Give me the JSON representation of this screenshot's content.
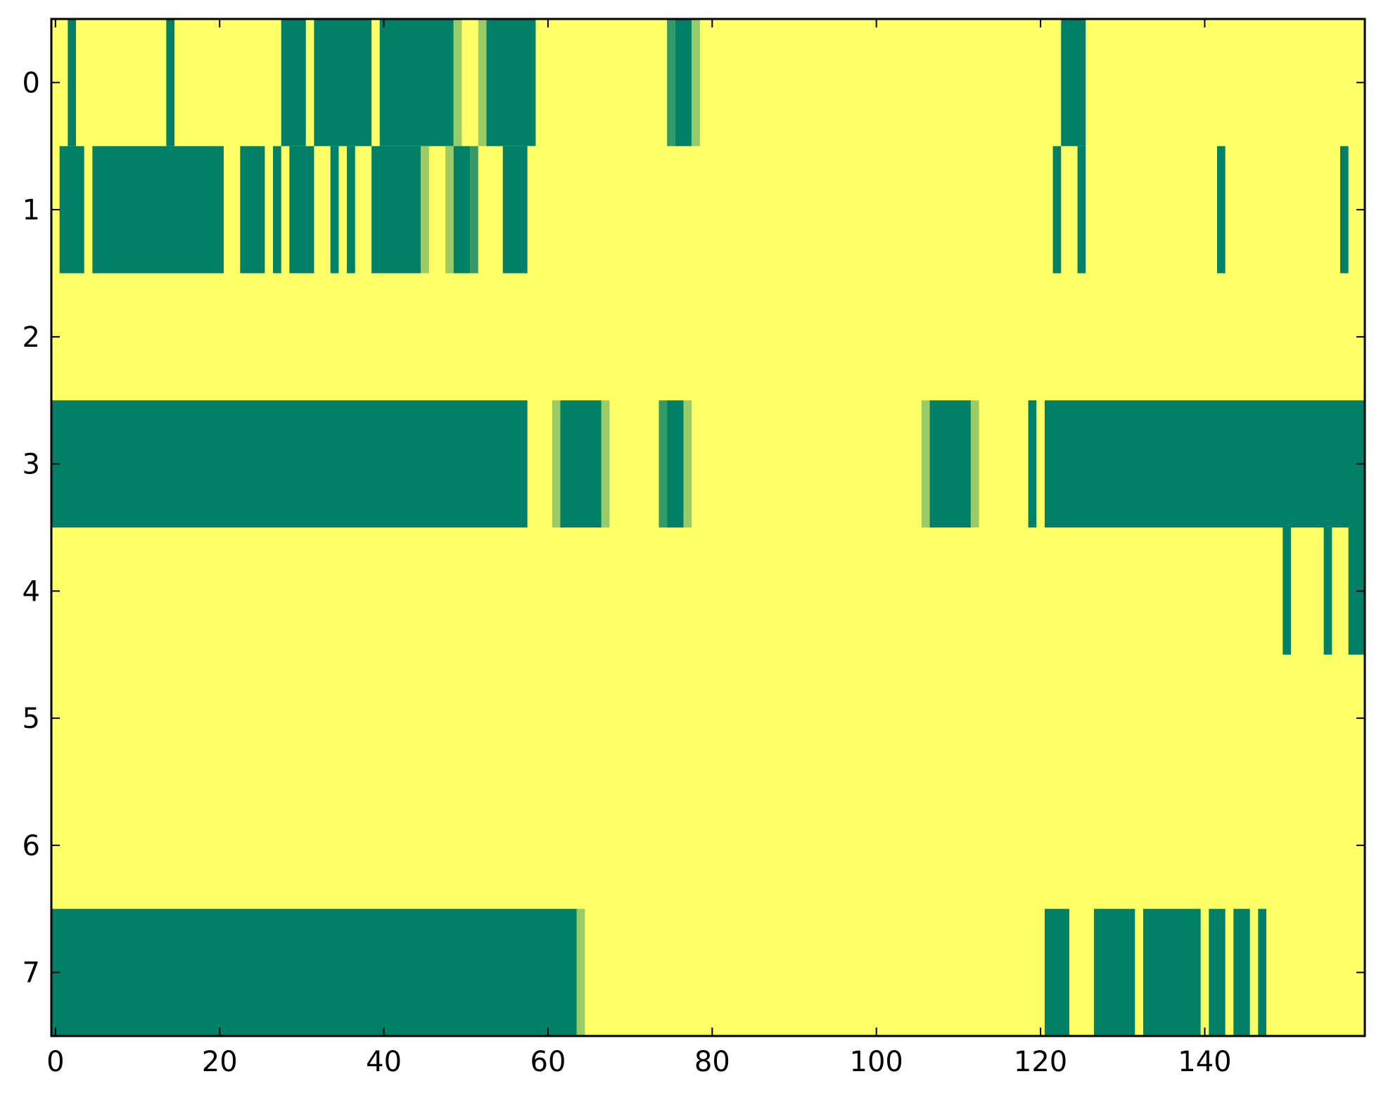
{
  "chart_data": {
    "type": "heatmap",
    "title": "",
    "xlabel": "",
    "ylabel": "",
    "x_ticks": [
      0,
      20,
      40,
      60,
      80,
      100,
      120,
      140
    ],
    "y_ticks": [
      0,
      1,
      2,
      3,
      4,
      5,
      6,
      7
    ],
    "xlim": [
      -0.5,
      159.5
    ],
    "ylim": [
      7.5,
      -0.5
    ],
    "n_cols": 160,
    "n_rows": 8,
    "value_range": [
      0,
      1
    ],
    "colormap": "summer_r",
    "colors": {
      "high": "#008066",
      "mid_high": "#339966",
      "mid_low": "#99cc66",
      "low": "#ffff66"
    },
    "cell_runs": [
      {
        "row": 0,
        "start": 2,
        "end": 3,
        "value": 1.0
      },
      {
        "row": 0,
        "start": 14,
        "end": 15,
        "value": 1.0
      },
      {
        "row": 0,
        "start": 28,
        "end": 31,
        "value": 1.0
      },
      {
        "row": 0,
        "start": 32,
        "end": 39,
        "value": 1.0
      },
      {
        "row": 0,
        "start": 40,
        "end": 49,
        "value": 1.0
      },
      {
        "row": 0,
        "start": 49,
        "end": 50,
        "value": 0.6
      },
      {
        "row": 0,
        "start": 52,
        "end": 53,
        "value": 0.6
      },
      {
        "row": 0,
        "start": 53,
        "end": 59,
        "value": 1.0
      },
      {
        "row": 0,
        "start": 59,
        "end": 60,
        "value": 0.2
      },
      {
        "row": 0,
        "start": 75,
        "end": 76,
        "value": 0.8
      },
      {
        "row": 0,
        "start": 76,
        "end": 78,
        "value": 1.0
      },
      {
        "row": 0,
        "start": 78,
        "end": 79,
        "value": 0.4
      },
      {
        "row": 0,
        "start": 123,
        "end": 126,
        "value": 1.0
      },
      {
        "row": 1,
        "start": 1,
        "end": 4,
        "value": 1.0
      },
      {
        "row": 1,
        "start": 5,
        "end": 21,
        "value": 1.0
      },
      {
        "row": 1,
        "start": 23,
        "end": 26,
        "value": 1.0
      },
      {
        "row": 1,
        "start": 27,
        "end": 28,
        "value": 1.0
      },
      {
        "row": 1,
        "start": 29,
        "end": 32,
        "value": 1.0
      },
      {
        "row": 1,
        "start": 34,
        "end": 35,
        "value": 1.0
      },
      {
        "row": 1,
        "start": 36,
        "end": 37,
        "value": 1.0
      },
      {
        "row": 1,
        "start": 39,
        "end": 45,
        "value": 1.0
      },
      {
        "row": 1,
        "start": 45,
        "end": 46,
        "value": 0.4
      },
      {
        "row": 1,
        "start": 48,
        "end": 49,
        "value": 0.6
      },
      {
        "row": 1,
        "start": 49,
        "end": 51,
        "value": 1.0
      },
      {
        "row": 1,
        "start": 51,
        "end": 52,
        "value": 0.8
      },
      {
        "row": 1,
        "start": 55,
        "end": 58,
        "value": 1.0
      },
      {
        "row": 1,
        "start": 58,
        "end": 59,
        "value": 0.2
      },
      {
        "row": 1,
        "start": 122,
        "end": 123,
        "value": 1.0
      },
      {
        "row": 1,
        "start": 125,
        "end": 126,
        "value": 1.0
      },
      {
        "row": 1,
        "start": 142,
        "end": 143,
        "value": 1.0
      },
      {
        "row": 1,
        "start": 157,
        "end": 158,
        "value": 1.0
      },
      {
        "row": 3,
        "start": -0.5,
        "end": 58,
        "value": 1.0
      },
      {
        "row": 3,
        "start": 58,
        "end": 59,
        "value": 0.2
      },
      {
        "row": 3,
        "start": 61,
        "end": 62,
        "value": 0.6
      },
      {
        "row": 3,
        "start": 62,
        "end": 67,
        "value": 1.0
      },
      {
        "row": 3,
        "start": 67,
        "end": 68,
        "value": 0.6
      },
      {
        "row": 3,
        "start": 74,
        "end": 75,
        "value": 0.8
      },
      {
        "row": 3,
        "start": 75,
        "end": 77,
        "value": 1.0
      },
      {
        "row": 3,
        "start": 77,
        "end": 78,
        "value": 0.4
      },
      {
        "row": 3,
        "start": 106,
        "end": 107,
        "value": 0.6
      },
      {
        "row": 3,
        "start": 107,
        "end": 112,
        "value": 1.0
      },
      {
        "row": 3,
        "start": 112,
        "end": 113,
        "value": 0.6
      },
      {
        "row": 3,
        "start": 119,
        "end": 120,
        "value": 1.0
      },
      {
        "row": 3,
        "start": 121,
        "end": 159.5,
        "value": 1.0
      },
      {
        "row": 4,
        "start": 150,
        "end": 151,
        "value": 1.0
      },
      {
        "row": 4,
        "start": 155,
        "end": 156,
        "value": 1.0
      },
      {
        "row": 4,
        "start": 158,
        "end": 159.5,
        "value": 1.0
      },
      {
        "row": 7,
        "start": -0.5,
        "end": 64,
        "value": 1.0
      },
      {
        "row": 7,
        "start": 64,
        "end": 65,
        "value": 0.6
      },
      {
        "row": 7,
        "start": 121,
        "end": 124,
        "value": 1.0
      },
      {
        "row": 7,
        "start": 127,
        "end": 132,
        "value": 1.0
      },
      {
        "row": 7,
        "start": 133,
        "end": 140,
        "value": 1.0
      },
      {
        "row": 7,
        "start": 141,
        "end": 143,
        "value": 1.0
      },
      {
        "row": 7,
        "start": 144,
        "end": 146,
        "value": 1.0
      },
      {
        "row": 7,
        "start": 147,
        "end": 148,
        "value": 1.0
      }
    ],
    "grid": false,
    "legend": "none"
  }
}
